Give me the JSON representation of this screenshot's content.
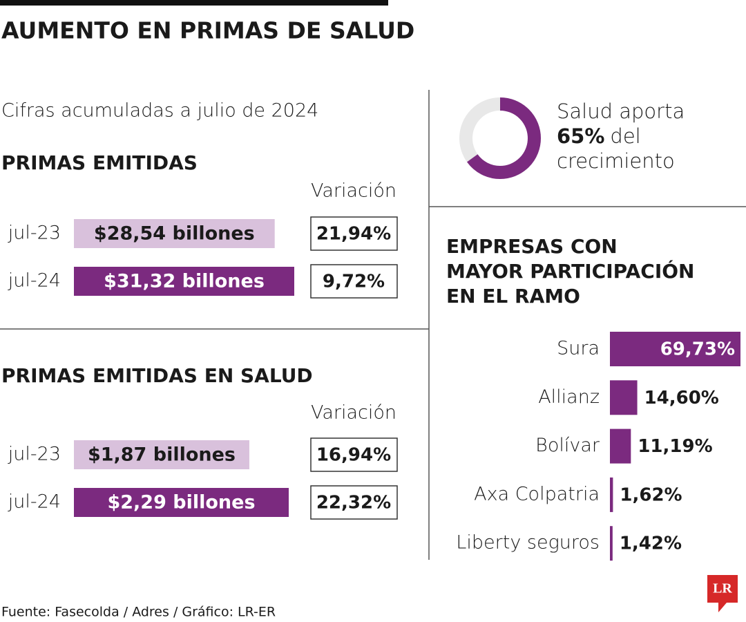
{
  "title": "AUMENTO EN PRIMAS DE SALUD",
  "subtitle": "Cifras acumuladas a julio de 2024",
  "source": "Fuente: Fasecolda / Adres / Gráfico: LR-ER",
  "logo": "LR",
  "chart_data": [
    {
      "type": "bar",
      "title": "PRIMAS EMITIDAS",
      "categories": [
        "jul-23",
        "jul-24"
      ],
      "values": [
        28.54,
        31.32
      ],
      "value_labels": [
        "$28,54 billones",
        "$31,32 billones"
      ],
      "colors": [
        "#d9c1dc",
        "#7b2a7f"
      ],
      "variation": {
        "title": "Variación",
        "values": [
          21.94,
          9.72
        ],
        "value_labels": [
          "21,94%",
          "9,72%"
        ]
      }
    },
    {
      "type": "bar",
      "title": "PRIMAS EMITIDAS EN SALUD",
      "categories": [
        "jul-23",
        "jul-24"
      ],
      "values": [
        1.87,
        2.29
      ],
      "value_labels": [
        "$1,87 billones",
        "$2,29 billones"
      ],
      "colors": [
        "#d9c1dc",
        "#7b2a7f"
      ],
      "variation": {
        "title": "Variación",
        "values": [
          16.94,
          22.32
        ],
        "value_labels": [
          "16,94%",
          "22,32%"
        ]
      }
    },
    {
      "type": "pie",
      "values": [
        65
      ],
      "value_labels": [
        "65%"
      ],
      "color": "#7b2a7f",
      "rest_color": "#e8e8e8",
      "lead": "Salud aporta",
      "tail": [
        "del",
        "crecimiento"
      ]
    },
    {
      "type": "hbar",
      "title": [
        "EMPRESAS CON",
        "MAYOR PARTICIPACIÓN",
        "EN EL RAMO"
      ],
      "categories": [
        "Sura",
        "Allianz",
        "Bolívar",
        "Axa Colpatria",
        "Liberty seguros"
      ],
      "values": [
        69.73,
        14.6,
        11.19,
        1.62,
        1.42
      ],
      "value_labels": [
        "69,73%",
        "14,60%",
        "11,19%",
        "1,62%",
        "1,42%"
      ],
      "color": "#7b2a7f"
    }
  ]
}
